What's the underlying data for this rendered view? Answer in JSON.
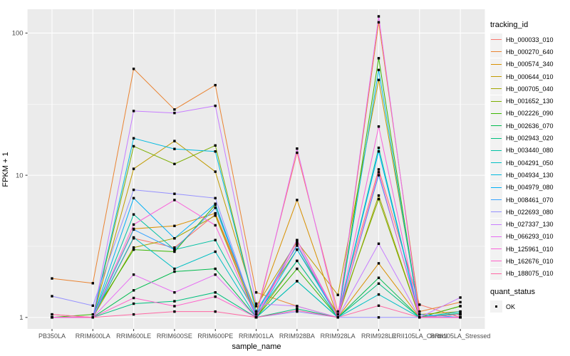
{
  "figure": {
    "y_axis_title": "FPKM + 1",
    "x_axis_title": "sample_name",
    "legend_title": "tracking_id",
    "quant_legend_title": "quant_status",
    "quant_legend_items": [
      {
        "label": "OK",
        "marker": "black-square"
      }
    ]
  },
  "colors": {
    "panel_background": "#EBEBEB",
    "gridline": "#FFFFFF",
    "axis_text": "#4D4D4D",
    "tick_mark": "#333333",
    "point": "#000000",
    "legend_key_background": "#F2F2F2"
  },
  "chart_data": {
    "type": "line",
    "title": "",
    "xlabel": "sample_name",
    "ylabel": "FPKM + 1",
    "x_scale": "categorical",
    "y_scale": "log10",
    "ylim": [
      0.83,
      147
    ],
    "y_ticks": [
      1,
      10,
      100
    ],
    "y_minor_gridlines": [
      3.162,
      31.62
    ],
    "grid": "major-and-minor, white on gray panel",
    "legend_position": "right",
    "point_marker": "small black square (quant_status = OK) on every data point",
    "categories": [
      "PB350LA",
      "RRIM600LA",
      "RRIM600LE",
      "RRIM600SE",
      "RRIM600PE",
      "RRIM901LA",
      "RRIM928BA",
      "RRIM928LA",
      "RRIM928LE",
      "RRII105LA_Control",
      "RRII105LA_Stressed"
    ],
    "series": [
      {
        "name": "Hb_000033_010",
        "color": "#F8766D",
        "values": [
          1.05,
          1.0,
          3.6,
          3.1,
          5.3,
          1.05,
          14.4,
          1.1,
          11.0,
          1.23,
          1.0
        ]
      },
      {
        "name": "Hb_000270_640",
        "color": "#EA8331",
        "values": [
          1.88,
          1.74,
          56,
          29,
          43,
          1.5,
          1.2,
          1.0,
          119,
          1.1,
          1.28
        ]
      },
      {
        "name": "Hb_000574_340",
        "color": "#D89000",
        "values": [
          1.0,
          1.0,
          4.2,
          4.4,
          5.4,
          1.1,
          6.7,
          1.0,
          2.4,
          1.0,
          1.0
        ]
      },
      {
        "name": "Hb_000644_010",
        "color": "#C09B00",
        "values": [
          1.0,
          1.0,
          11.1,
          17.4,
          10.6,
          1.2,
          3.4,
          1.44,
          46.8,
          1.05,
          1.1
        ]
      },
      {
        "name": "Hb_000705_040",
        "color": "#A3A500",
        "values": [
          1.0,
          1.0,
          3.1,
          3.6,
          5.2,
          1.0,
          2.5,
          1.0,
          7.2,
          1.0,
          1.05
        ]
      },
      {
        "name": "Hb_001652_130",
        "color": "#7CAE00",
        "values": [
          1.0,
          1.0,
          16.0,
          12.0,
          16.2,
          1.1,
          3.0,
          1.05,
          6.8,
          1.0,
          1.2
        ]
      },
      {
        "name": "Hb_002226_090",
        "color": "#39B600",
        "values": [
          1.0,
          1.05,
          3.0,
          2.9,
          6.2,
          1.0,
          2.2,
          1.0,
          66.5,
          1.0,
          1.2
        ]
      },
      {
        "name": "Hb_002636_070",
        "color": "#00BB4E",
        "values": [
          1.0,
          1.0,
          1.55,
          2.1,
          2.2,
          1.0,
          1.8,
          1.0,
          1.9,
          1.0,
          1.0
        ]
      },
      {
        "name": "Hb_002943_020",
        "color": "#00BF7D",
        "values": [
          1.0,
          1.0,
          1.25,
          1.3,
          1.5,
          1.0,
          1.15,
          1.0,
          1.73,
          1.0,
          1.07
        ]
      },
      {
        "name": "Hb_003440_080",
        "color": "#00C1A3",
        "values": [
          1.0,
          1.0,
          5.3,
          3.0,
          3.5,
          1.05,
          2.5,
          1.0,
          15.6,
          1.0,
          1.05
        ]
      },
      {
        "name": "Hb_004291_050",
        "color": "#00BFC4",
        "values": [
          1.0,
          1.0,
          3.65,
          2.2,
          2.9,
          1.0,
          1.8,
          1.0,
          1.45,
          1.0,
          1.1
        ]
      },
      {
        "name": "Hb_004934_130",
        "color": "#00BAE0",
        "values": [
          1.0,
          1.0,
          18.2,
          15.3,
          14.7,
          1.1,
          3.2,
          1.0,
          55,
          1.0,
          1.05
        ]
      },
      {
        "name": "Hb_004979_080",
        "color": "#00B0F6",
        "values": [
          1.0,
          1.0,
          6.9,
          3.6,
          6.3,
          1.0,
          3.0,
          1.0,
          14.7,
          1.0,
          1.0
        ]
      },
      {
        "name": "Hb_008461_070",
        "color": "#35A2FF",
        "values": [
          1.0,
          1.0,
          4.15,
          3.0,
          5.9,
          1.05,
          3.5,
          1.0,
          10.0,
          1.05,
          1.0
        ]
      },
      {
        "name": "Hb_022693_080",
        "color": "#9590FF",
        "values": [
          1.41,
          1.21,
          7.9,
          7.4,
          6.9,
          1.0,
          1.1,
          1.0,
          1.0,
          1.0,
          1.0
        ]
      },
      {
        "name": "Hb_027337_130",
        "color": "#C77CFF",
        "values": [
          1.0,
          1.0,
          28.3,
          27.4,
          30.8,
          1.25,
          1.2,
          1.0,
          3.3,
          1.0,
          1.38
        ]
      },
      {
        "name": "Hb_066293_010",
        "color": "#E76BF3",
        "values": [
          1.0,
          1.0,
          2.0,
          1.5,
          2.0,
          1.0,
          15.4,
          1.0,
          131,
          1.0,
          1.0
        ]
      },
      {
        "name": "Hb_125961_010",
        "color": "#FA62DB",
        "values": [
          1.0,
          1.0,
          4.5,
          6.7,
          4.45,
          1.0,
          3.3,
          1.0,
          22,
          1.0,
          1.0
        ]
      },
      {
        "name": "Hb_162676_010",
        "color": "#FF61C9",
        "values": [
          1.0,
          1.0,
          1.37,
          1.2,
          1.4,
          1.0,
          3.5,
          1.0,
          10.5,
          1.0,
          1.0
        ]
      },
      {
        "name": "Hb_188075_010",
        "color": "#FF67A4",
        "values": [
          1.05,
          1.0,
          1.05,
          1.1,
          1.1,
          1.0,
          1.12,
          1.0,
          1.21,
          1.0,
          1.05
        ]
      }
    ]
  }
}
